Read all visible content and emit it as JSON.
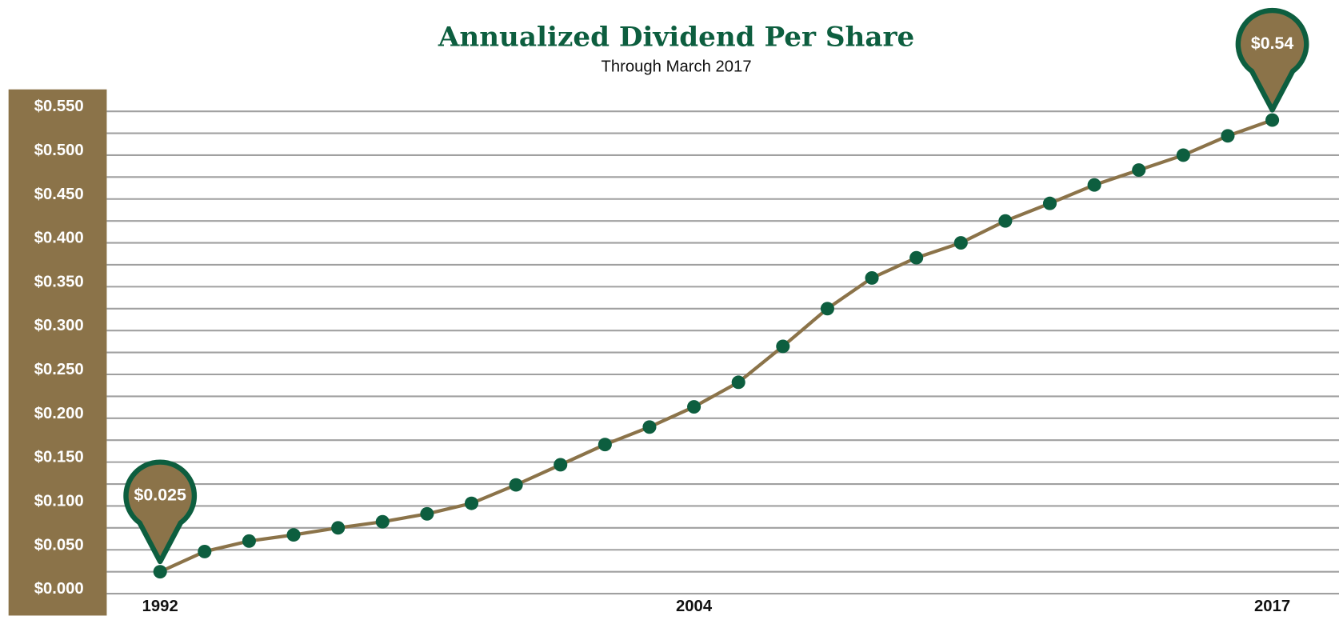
{
  "chart_data": {
    "type": "line",
    "title": "Annualized Dividend Per Share",
    "subtitle": "Through March 2017",
    "x": [
      1992,
      1993,
      1994,
      1995,
      1996,
      1997,
      1998,
      1999,
      2000,
      2001,
      2002,
      2003,
      2004,
      2005,
      2006,
      2007,
      2008,
      2009,
      2010,
      2011,
      2012,
      2013,
      2014,
      2015,
      2016,
      2017
    ],
    "xlim": [
      1990.8,
      2018.5
    ],
    "xticks": [
      1992,
      2004,
      2017
    ],
    "ylim": [
      0,
      0.55
    ],
    "yticks": [
      {
        "value": 0,
        "label": "$0.000"
      },
      {
        "value": 0.05,
        "label": "$0.050"
      },
      {
        "value": 0.1,
        "label": "$0.100"
      },
      {
        "value": 0.15,
        "label": "$0.150"
      },
      {
        "value": 0.2,
        "label": "$0.200"
      },
      {
        "value": 0.25,
        "label": "$0.250"
      },
      {
        "value": 0.3,
        "label": "$0.300"
      },
      {
        "value": 0.35,
        "label": "$0.350"
      },
      {
        "value": 0.4,
        "label": "$0.400"
      },
      {
        "value": 0.45,
        "label": "$0.450"
      },
      {
        "value": 0.5,
        "label": "$0.500"
      },
      {
        "value": 0.55,
        "label": "$0.550"
      }
    ],
    "minor_yticks": [
      0.025,
      0.075,
      0.125,
      0.175,
      0.225,
      0.275,
      0.325,
      0.375,
      0.425,
      0.475,
      0.525
    ],
    "grid": true,
    "series": [
      {
        "name": "Annualized Dividend Per Share",
        "color": "#8b7349",
        "marker_color": "#0d5e3f",
        "values": [
          0.025,
          0.048,
          0.06,
          0.067,
          0.075,
          0.082,
          0.091,
          0.103,
          0.124,
          0.147,
          0.17,
          0.19,
          0.213,
          0.241,
          0.282,
          0.325,
          0.36,
          0.383,
          0.4,
          0.425,
          0.445,
          0.466,
          0.483,
          0.5,
          0.522,
          0.54
        ],
        "value_labels": [
          "$0.025",
          null,
          null,
          null,
          null,
          null,
          null,
          null,
          null,
          null,
          null,
          null,
          null,
          null,
          null,
          null,
          null,
          null,
          null,
          null,
          null,
          null,
          null,
          null,
          null,
          "$0.54"
        ]
      }
    ]
  }
}
